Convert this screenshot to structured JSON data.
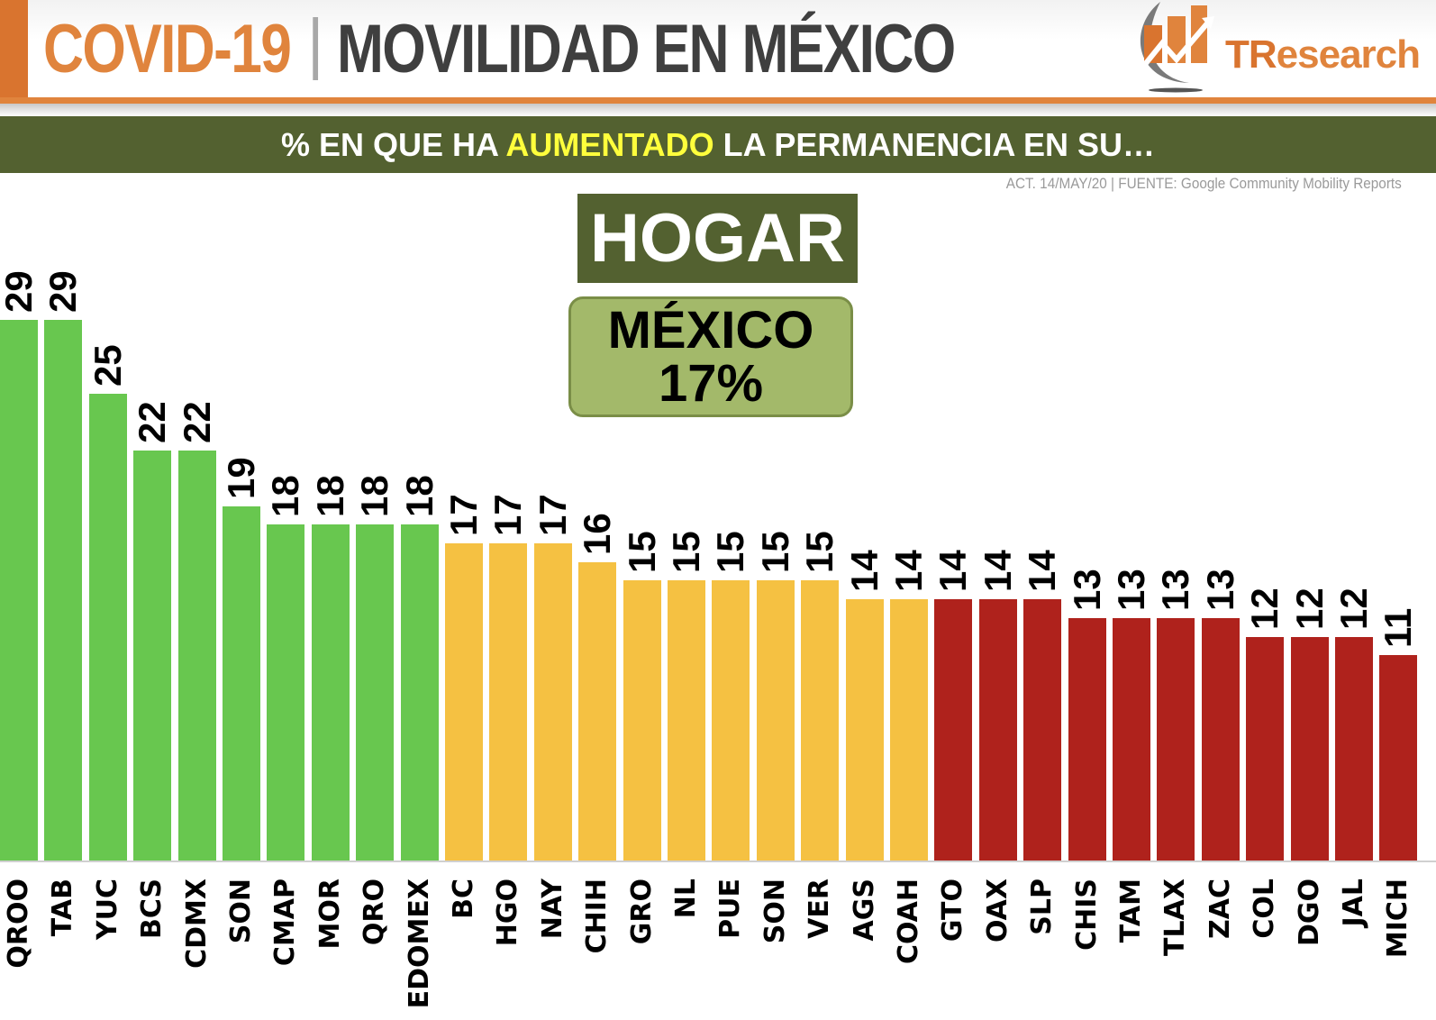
{
  "header": {
    "title_part1": "COVID-19",
    "title_part2": "MOVILIDAD EN MÉXICO",
    "logo_text_1": "TR",
    "logo_text_2": "esearch"
  },
  "banner": {
    "prefix": "% EN QUE HA ",
    "highlight": "AUMENTADO",
    "suffix": " LA PERMANENCIA EN SU…"
  },
  "source": "ACT. 14/MAY/20 | FUENTE: Google Community Mobility Reports",
  "category_box": {
    "label": "HOGAR"
  },
  "national_box": {
    "label": "MÉXICO",
    "value": "17%"
  },
  "colors": {
    "green": "#68c74f",
    "yellow": "#f5c142",
    "red": "#af221c",
    "olive": "#536130",
    "orange": "#e0843d"
  },
  "chart_data": {
    "type": "bar",
    "title": "% EN QUE HA AUMENTADO LA PERMANENCIA EN SU… HOGAR",
    "xlabel": "",
    "ylabel": "",
    "ylim": [
      0,
      30
    ],
    "grid": false,
    "legend": "none",
    "annotation": "MÉXICO 17%",
    "categories": [
      "QROO",
      "TAB",
      "YUC",
      "BCS",
      "CDMX",
      "SON",
      "CMAP",
      "MOR",
      "QRO",
      "EDOMEX",
      "BC",
      "HGO",
      "NAY",
      "CHIH",
      "GRO",
      "NL",
      "PUE",
      "SON",
      "VER",
      "AGS",
      "COAH",
      "GTO",
      "OAX",
      "SLP",
      "CHIS",
      "TAM",
      "TLAX",
      "ZAC",
      "COL",
      "DGO",
      "JAL",
      "MICH"
    ],
    "values": [
      29,
      29,
      25,
      22,
      22,
      19,
      18,
      18,
      18,
      18,
      17,
      17,
      17,
      16,
      15,
      15,
      15,
      15,
      15,
      14,
      14,
      14,
      14,
      14,
      13,
      13,
      13,
      13,
      12,
      12,
      12,
      11
    ],
    "bar_colors": [
      "green",
      "green",
      "green",
      "green",
      "green",
      "green",
      "green",
      "green",
      "green",
      "green",
      "yellow",
      "yellow",
      "yellow",
      "yellow",
      "yellow",
      "yellow",
      "yellow",
      "yellow",
      "yellow",
      "yellow",
      "yellow",
      "red",
      "red",
      "red",
      "red",
      "red",
      "red",
      "red",
      "red",
      "red",
      "red",
      "red"
    ]
  }
}
